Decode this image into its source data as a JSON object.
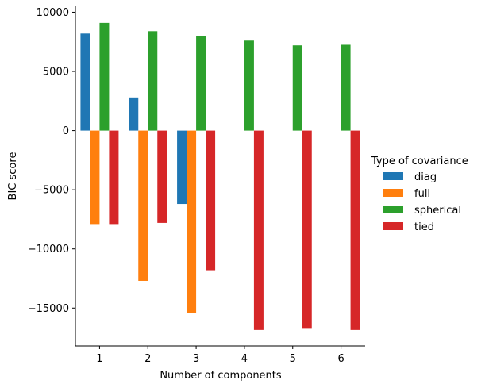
{
  "chart_data": {
    "type": "bar",
    "categories": [
      "1",
      "2",
      "3",
      "4",
      "5",
      "6"
    ],
    "xlabel": "Number of components",
    "ylabel": "BIC score",
    "ylim": [
      -18200,
      10500
    ],
    "yticks": [
      10000,
      5000,
      0,
      -5000,
      -10000,
      -15000
    ],
    "ytick_labels": [
      "10000",
      "5000",
      "0",
      "−5000",
      "−10000",
      "−15000"
    ],
    "legend_title": "Type of covariance",
    "legend_position": "right",
    "grid": false,
    "series": [
      {
        "name": "diag",
        "color": "#1f77b4",
        "values": [
          8200,
          2800,
          -6200,
          null,
          null,
          null
        ]
      },
      {
        "name": "full",
        "color": "#ff7f0e",
        "values": [
          -7900,
          -12700,
          -15400,
          null,
          null,
          null
        ]
      },
      {
        "name": "spherical",
        "color": "#2ca02c",
        "values": [
          9100,
          8400,
          8000,
          7600,
          7200,
          7250
        ]
      },
      {
        "name": "tied",
        "color": "#d62728",
        "values": [
          -7900,
          -7800,
          -11800,
          -16850,
          -16750,
          -16850
        ]
      }
    ]
  }
}
